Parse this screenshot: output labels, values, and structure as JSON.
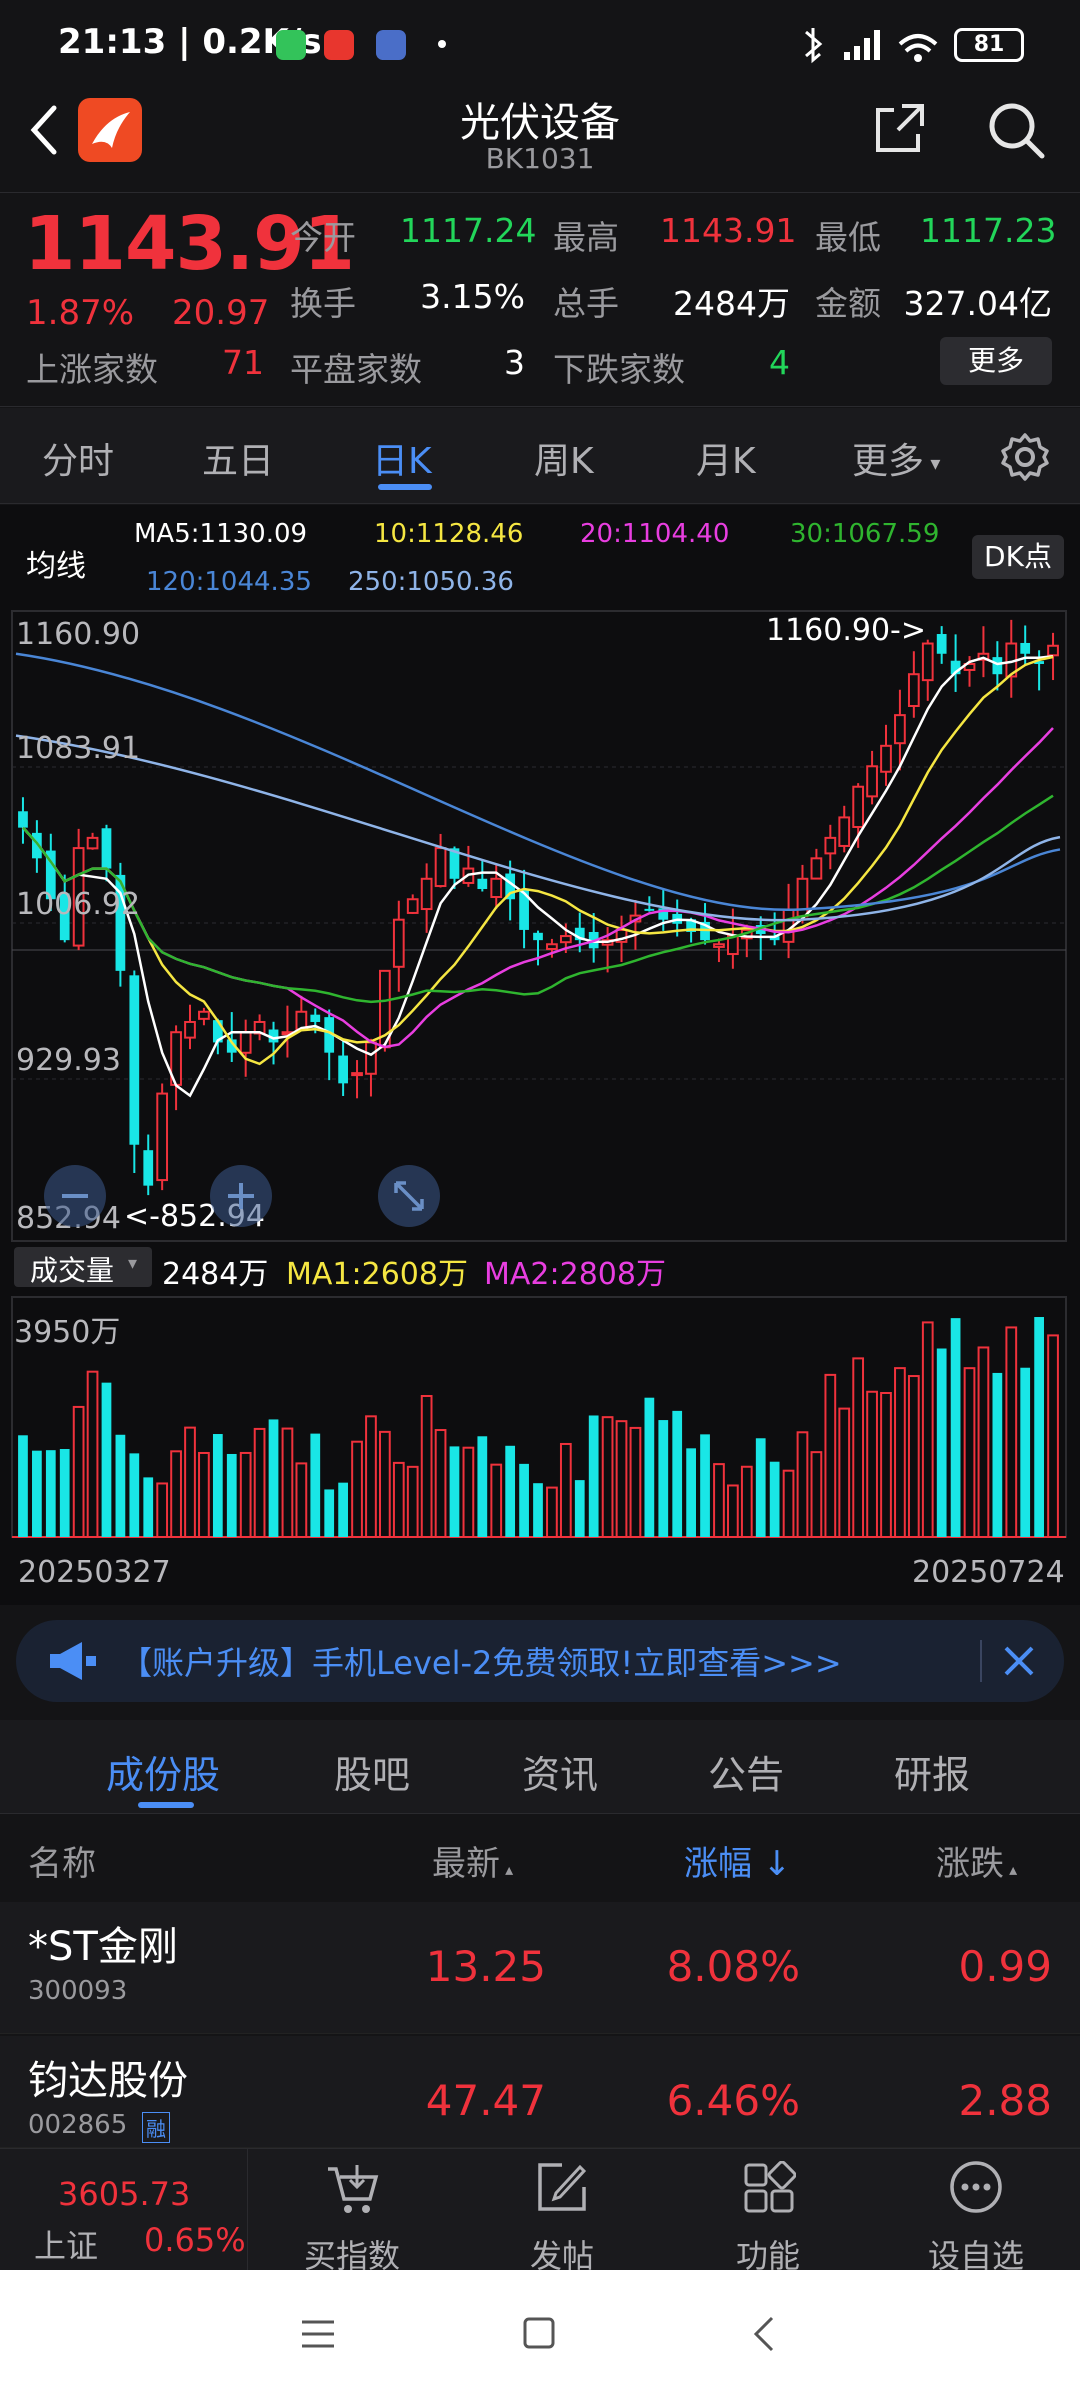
{
  "status_bar": {
    "time": "21:13 | 0.2K/s",
    "battery": "81"
  },
  "header": {
    "title": "光伏设备",
    "code": "BK1031"
  },
  "quote": {
    "price": "1143.91",
    "change_pct": "1.87%",
    "change": "20.97",
    "open_label": "今开",
    "open": "1117.24",
    "high_label": "最高",
    "high": "1143.91",
    "low_label": "最低",
    "low": "1117.23",
    "turnover_label": "换手",
    "turnover": "3.15%",
    "volume_label": "总手",
    "volume": "2484万",
    "amount_label": "金额",
    "amount": "327.04亿",
    "up_label": "上涨家数",
    "up": "71",
    "flat_label": "平盘家数",
    "flat": "3",
    "down_label": "下跌家数",
    "down": "4",
    "more_label": "更多"
  },
  "period_tabs": [
    "分时",
    "五日",
    "日K",
    "周K",
    "月K",
    "更多"
  ],
  "active_period": "日K",
  "ma_legend": {
    "title": "均线",
    "ma5": "MA5:1130.09",
    "ma10": "10:1128.46",
    "ma20": "20:1104.40",
    "ma30": "30:1067.59",
    "ma120": "120:1044.35",
    "ma250": "250:1050.36",
    "dk_label": "DK点"
  },
  "colors": {
    "ma5": "#ffffff",
    "ma10": "#f5e642",
    "ma20": "#e83ee0",
    "ma30": "#2fb52f",
    "ma120": "#4a86d6",
    "ma250": "#8fb4e8",
    "up": "#f0323c",
    "down": "#19e6e6"
  },
  "chart": {
    "y_labels": [
      "1160.90",
      "1083.91",
      "1006.92",
      "929.93",
      "852.94"
    ],
    "max_annotation": "1160.90->",
    "min_annotation": "<-852.94",
    "volume_label": "成交量",
    "volume_value": "2484万",
    "vol_ma1": "MA1:2608万",
    "vol_ma2": "MA2:2808万",
    "vol_max_label": "3950万",
    "date_start": "20250327",
    "date_end": "20250724"
  },
  "chart_data": {
    "type": "candlestick",
    "ylim": [
      852.94,
      1160.9
    ],
    "closes": [
      1055,
      1040,
      1020,
      1000,
      1045,
      1050,
      1035,
      985,
      900,
      880,
      925,
      955,
      960,
      965,
      950,
      945,
      955,
      960,
      950,
      955,
      965,
      960,
      945,
      930,
      935,
      950,
      985,
      1010,
      1020,
      1030,
      1045,
      1030,
      1035,
      1025,
      1030,
      1020,
      1005,
      1000,
      998,
      1002,
      1000,
      996,
      1000,
      1005,
      1012,
      1015,
      1010,
      1008,
      1004,
      1000,
      998,
      1002,
      1005,
      1003,
      1000,
      1015,
      1030,
      1040,
      1050,
      1060,
      1075,
      1085,
      1095,
      1110,
      1130,
      1145,
      1140,
      1130,
      1135,
      1140,
      1130,
      1145,
      1140,
      1135,
      1143.91
    ],
    "volume_max": 3950
  },
  "banner": {
    "text": "【账户升级】手机Level-2免费领取!立即查看>>>"
  },
  "sub_tabs": [
    "成份股",
    "股吧",
    "资讯",
    "公告",
    "研报"
  ],
  "active_sub_tab": "成份股",
  "table": {
    "headers": {
      "name": "名称",
      "latest": "最新",
      "change_pct": "涨幅",
      "change": "涨跌"
    },
    "rows": [
      {
        "name": "*ST金刚",
        "code": "300093",
        "latest": "13.25",
        "change_pct": "8.08%",
        "change": "0.99",
        "badge": ""
      },
      {
        "name": "钧达股份",
        "code": "002865",
        "latest": "47.47",
        "change_pct": "6.46%",
        "change": "2.88",
        "badge": "融"
      }
    ]
  },
  "bottom_bar": {
    "index_value": "3605.73",
    "index_name": "上证",
    "index_pct": "0.65%",
    "items": [
      "买指数",
      "发帖",
      "功能",
      "设自选"
    ]
  }
}
